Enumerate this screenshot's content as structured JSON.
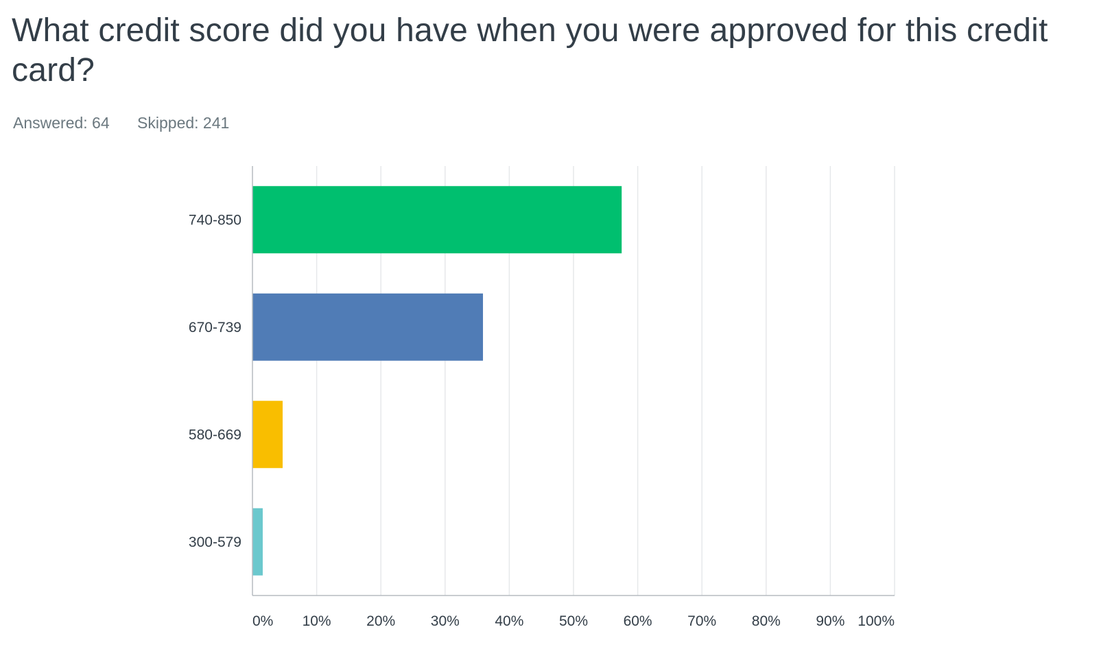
{
  "question": {
    "title": "What credit score did you have when you were approved for this credit card?"
  },
  "stats": {
    "answered": "Answered: 64",
    "skipped": "Skipped: 241"
  },
  "colors": {
    "text": "#333e48",
    "muted": "#6b787f",
    "grid": "#e6e8ea",
    "axis": "#b5bcc1"
  },
  "chart_data": {
    "type": "bar",
    "orientation": "horizontal",
    "categories": [
      "740-850",
      "670-739",
      "580-669",
      "300-579"
    ],
    "values": [
      57.5,
      35.9,
      4.7,
      1.6
    ],
    "colors": [
      "#00bf6f",
      "#507cb6",
      "#f9be00",
      "#6bc8cd"
    ],
    "x_ticks": [
      "0%",
      "10%",
      "20%",
      "30%",
      "40%",
      "50%",
      "60%",
      "70%",
      "80%",
      "90%",
      "100%"
    ],
    "xlim": [
      0,
      100
    ],
    "title": "",
    "xlabel": "",
    "ylabel": "",
    "grid": true,
    "legend": false
  }
}
